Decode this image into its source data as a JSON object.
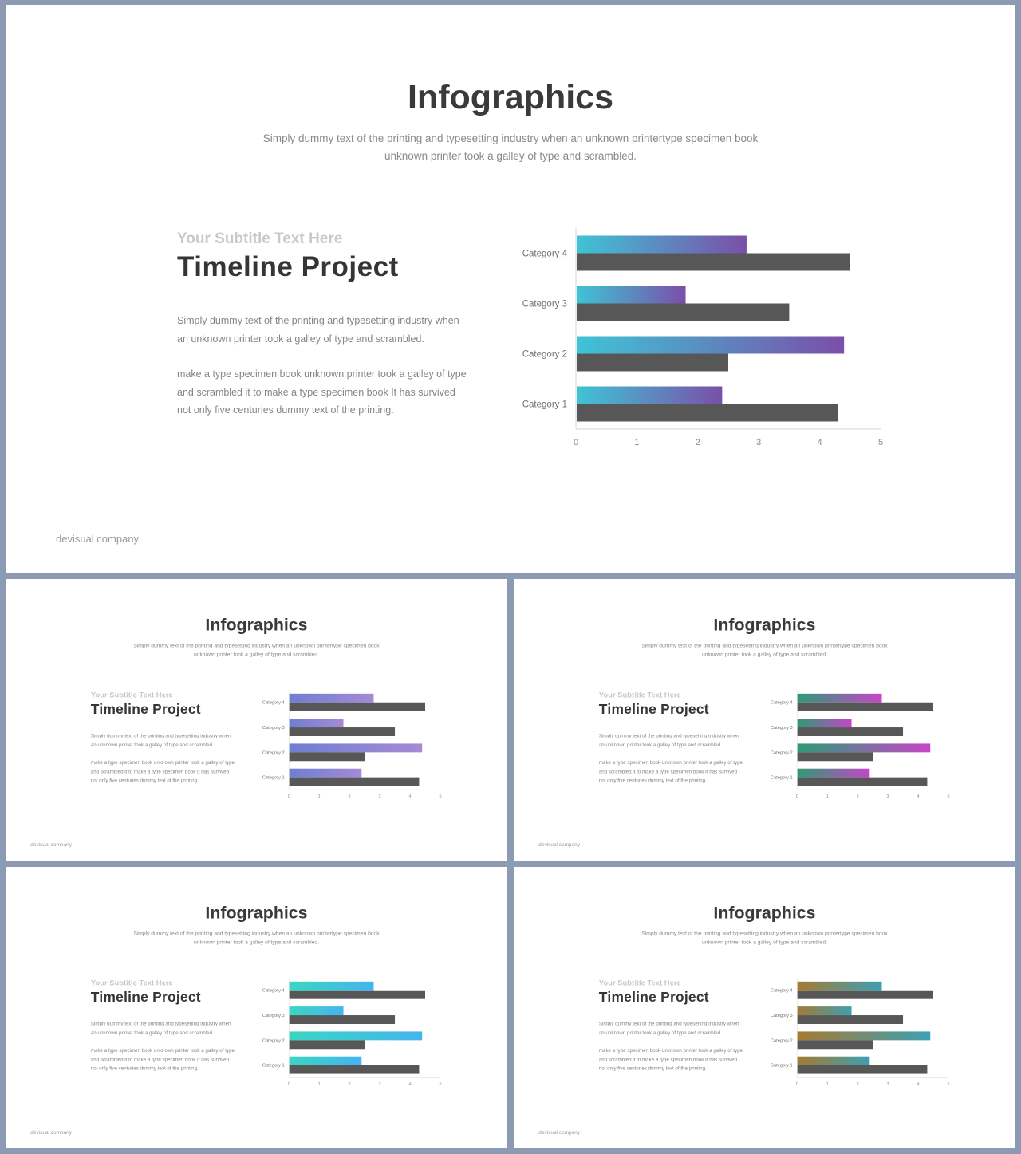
{
  "slide": {
    "title": "Infographics",
    "intro_line1": "Simply dummy text of the printing and typesetting industry when an unknown printertype specimen book",
    "intro_line2": "unknown printer took a galley of type and scrambled.",
    "subtitle": "Your Subtitle Text Here",
    "heading": "Timeline Project",
    "para1": "Simply dummy text of the printing and typesetting industry when an unknown printer took a galley of type and scrambled.",
    "para2": "make a type specimen book unknown printer took a galley of type and scrambled it to make a type specimen book It has survived not only five centuries dummy text of the printing.",
    "footer": "devisual company"
  },
  "chart_data": {
    "type": "bar",
    "orientation": "horizontal",
    "categories": [
      "Category 1",
      "Category 2",
      "Category 3",
      "Category 4"
    ],
    "series": [
      {
        "values": [
          2.4,
          4.4,
          1.8,
          2.8
        ]
      },
      {
        "values": [
          4.3,
          2.5,
          3.5,
          4.5
        ]
      }
    ],
    "xlim": [
      0,
      5
    ],
    "xticks": [
      "0",
      "1",
      "2",
      "3",
      "4",
      "5"
    ],
    "grid": false
  },
  "colors": {
    "dark_bar": "#575757",
    "variants": [
      {
        "name": "teal-purple",
        "from": "#3fc4d6",
        "to": "#7a4fa8"
      },
      {
        "name": "blue-purple",
        "from": "#6f7ed3",
        "to": "#a58ad4"
      },
      {
        "name": "green-magenta",
        "from": "#2e9a76",
        "to": "#c646c8"
      },
      {
        "name": "aqua-blue",
        "from": "#39d6c2",
        "to": "#46b4ef"
      },
      {
        "name": "brown-teal",
        "from": "#a57a32",
        "to": "#3da0b3"
      }
    ]
  }
}
